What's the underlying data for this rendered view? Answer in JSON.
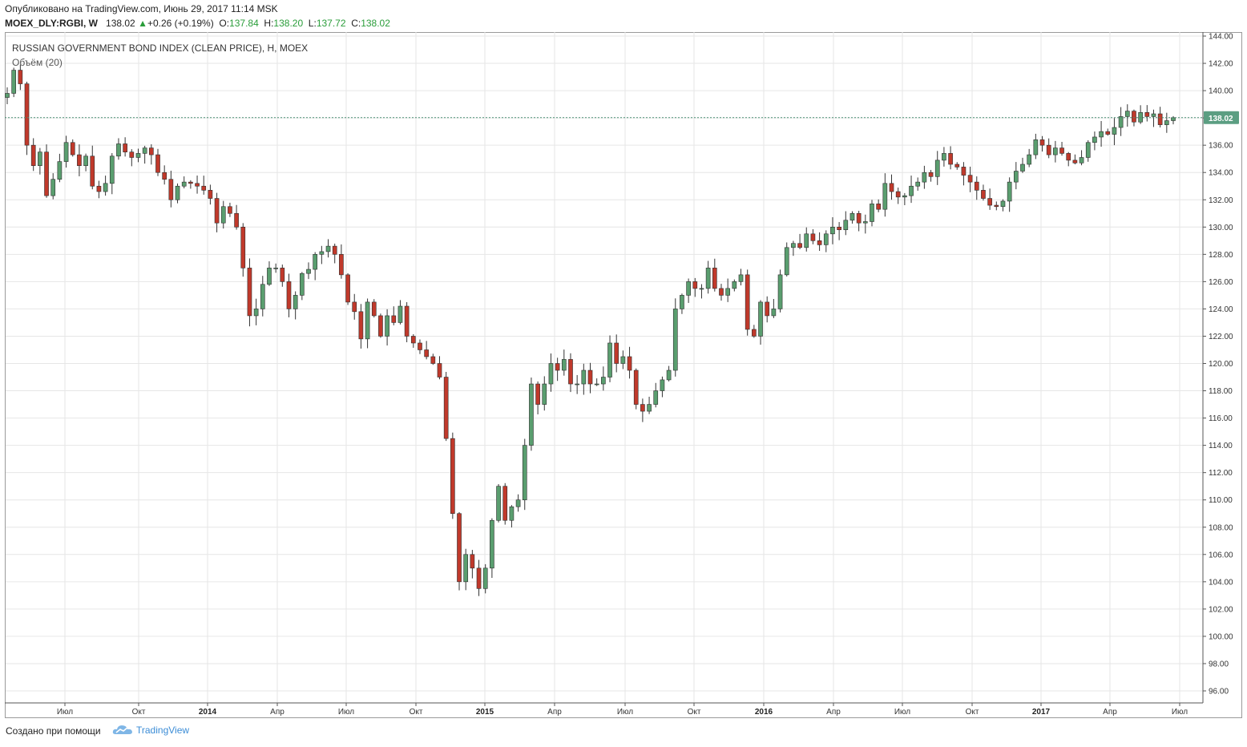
{
  "header": {
    "published": "Опубликовано на TradingView.com, Июнь 29, 2017 11:14 MSK",
    "symbol": "MOEX_DLY:RGBI, W",
    "last": "138.02",
    "change_arrow": "▲",
    "change": "+0.26 (+0.19%)",
    "o_label": "O:",
    "o_value": "137.84",
    "h_label": "H:",
    "h_value": "138.20",
    "l_label": "L:",
    "l_value": "137.72",
    "c_label": "C:",
    "c_value": "138.02"
  },
  "chart_title": "RUSSIAN GOVERNMENT BOND INDEX (CLEAN PRICE), Н, MOEX",
  "volume_label": "Объём (20)",
  "footer": {
    "created_with": "Создано при помощи",
    "brand": "TradingView",
    "logo_icon": "tradingview-cloud-icon"
  },
  "colors": {
    "up": "#5a9e6f",
    "down": "#c0392b",
    "grid": "#e6e6e6",
    "last_price_line": "#4a8f73",
    "last_price_badge": "#5b9e82"
  },
  "chart_data": {
    "type": "candlestick",
    "timeframe": "W",
    "ylim": [
      95,
      144
    ],
    "y_ticks": [
      "96.00",
      "98.00",
      "100.00",
      "102.00",
      "104.00",
      "106.00",
      "108.00",
      "110.00",
      "112.00",
      "114.00",
      "116.00",
      "118.00",
      "120.00",
      "122.00",
      "124.00",
      "126.00",
      "128.00",
      "130.00",
      "132.00",
      "134.00",
      "136.00",
      "138.00",
      "140.00",
      "142.00",
      "144.00"
    ],
    "x_ticks": [
      {
        "label": "Июл",
        "bold": false
      },
      {
        "label": "Окт",
        "bold": false
      },
      {
        "label": "2014",
        "bold": true
      },
      {
        "label": "Апр",
        "bold": false
      },
      {
        "label": "Июл",
        "bold": false
      },
      {
        "label": "Окт",
        "bold": false
      },
      {
        "label": "2015",
        "bold": true
      },
      {
        "label": "Апр",
        "bold": false
      },
      {
        "label": "Июл",
        "bold": false
      },
      {
        "label": "Окт",
        "bold": false
      },
      {
        "label": "2016",
        "bold": true
      },
      {
        "label": "Апр",
        "bold": false
      },
      {
        "label": "Июл",
        "bold": false
      },
      {
        "label": "Окт",
        "bold": false
      },
      {
        "label": "2017",
        "bold": true
      },
      {
        "label": "Апр",
        "bold": false
      },
      {
        "label": "Июл",
        "bold": false
      }
    ],
    "last_price": 138.02,
    "last_price_label": "138.02",
    "closes": [
      139.8,
      141.5,
      140.5,
      136,
      134.5,
      135.5,
      132.3,
      133.5,
      134.8,
      136.2,
      135.3,
      134.5,
      135.2,
      133.0,
      132.6,
      133.2,
      135.2,
      136.1,
      135.5,
      135.1,
      135.4,
      135.8,
      135.3,
      134.0,
      133.5,
      132.0,
      133.0,
      133.3,
      133.2,
      133.0,
      132.7,
      132.1,
      130.3,
      131.5,
      131.0,
      130.0,
      127.0,
      123.5,
      124.0,
      125.8,
      127.0,
      127.0,
      126.0,
      124.0,
      125.0,
      126.6,
      126.9,
      128.0,
      128.2,
      128.6,
      128.0,
      126.5,
      124.5,
      123.8,
      121.8,
      124.5,
      123.5,
      122.0,
      123.5,
      123.0,
      124.2,
      122.0,
      121.5,
      121.0,
      120.5,
      120.0,
      119.0,
      114.5,
      109.0,
      104.0,
      106.0,
      105.0,
      103.5,
      105.0,
      108.5,
      111.0,
      108.5,
      109.5,
      110.0,
      114.0,
      118.5,
      117.0,
      118.5,
      120.0,
      119.5,
      120.3,
      118.5,
      118.5,
      119.5,
      118.5,
      118.5,
      119.0,
      121.5,
      120.0,
      120.5,
      119.5,
      117.0,
      116.5,
      117.0,
      118.0,
      118.8,
      119.5,
      124.0,
      125.0,
      126.0,
      125.5,
      125.5,
      127.0,
      125.5,
      125.0,
      125.5,
      126.0,
      126.5,
      122.5,
      122.0,
      124.5,
      123.5,
      124.0,
      126.5,
      128.5,
      128.8,
      128.5,
      129.5,
      129.0,
      128.7,
      129.5,
      130.0,
      129.8,
      130.5,
      131.0,
      130.3,
      130.4,
      131.7,
      131.3,
      133.2,
      132.6,
      132.2,
      132.3,
      133.0,
      133.3,
      134.0,
      133.7,
      134.9,
      135.4,
      134.6,
      134.4,
      133.8,
      133.3,
      132.7,
      132.1,
      131.6,
      131.5,
      131.9,
      133.3,
      134.1,
      134.6,
      135.3,
      136.4,
      136.0,
      135.3,
      135.8,
      135.4,
      134.9,
      134.7,
      135.1,
      136.2,
      136.6,
      137.0,
      136.8,
      137.3,
      138.1,
      138.5,
      137.7,
      138.4,
      138.1,
      138.3,
      137.5,
      137.8,
      138.02
    ]
  }
}
